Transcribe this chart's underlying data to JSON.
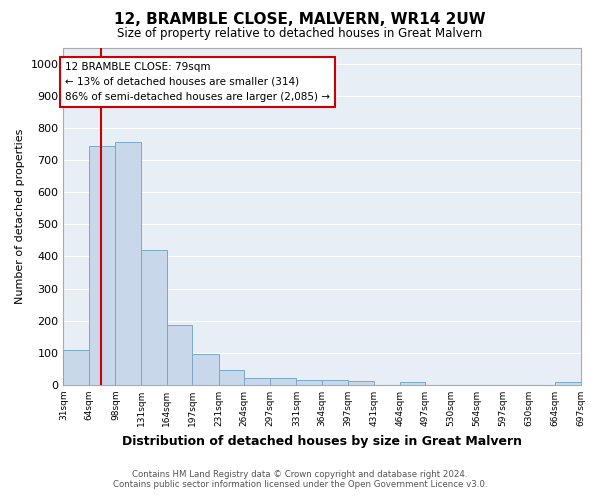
{
  "title": "12, BRAMBLE CLOSE, MALVERN, WR14 2UW",
  "subtitle": "Size of property relative to detached houses in Great Malvern",
  "xlabel": "Distribution of detached houses by size in Great Malvern",
  "ylabel": "Number of detached properties",
  "footer_line1": "Contains HM Land Registry data © Crown copyright and database right 2024.",
  "footer_line2": "Contains public sector information licensed under the Open Government Licence v3.0.",
  "annotation_line1": "12 BRAMBLE CLOSE: 79sqm",
  "annotation_line2": "← 13% of detached houses are smaller (314)",
  "annotation_line3": "86% of semi-detached houses are larger (2,085) →",
  "property_size_sqm": 79,
  "bar_color": "#c8d8ea",
  "bar_edge_color": "#7aaac8",
  "red_line_color": "#cc0000",
  "background_color": "#ffffff",
  "plot_bg_color": "#e8eef5",
  "annotation_box_color": "#ffffff",
  "annotation_box_edge": "#cc0000",
  "grid_color": "#ffffff",
  "ylim": [
    0,
    1050
  ],
  "yticks": [
    0,
    100,
    200,
    300,
    400,
    500,
    600,
    700,
    800,
    900,
    1000
  ],
  "bin_edges": [
    31,
    64,
    98,
    131,
    164,
    197,
    231,
    264,
    297,
    331,
    364,
    397,
    431,
    464,
    497,
    530,
    564,
    597,
    630,
    664,
    697
  ],
  "bin_labels": [
    "31sqm",
    "64sqm",
    "98sqm",
    "131sqm",
    "164sqm",
    "197sqm",
    "231sqm",
    "264sqm",
    "297sqm",
    "331sqm",
    "364sqm",
    "397sqm",
    "431sqm",
    "464sqm",
    "497sqm",
    "530sqm",
    "564sqm",
    "597sqm",
    "630sqm",
    "664sqm",
    "697sqm"
  ],
  "bar_heights": [
    110,
    745,
    755,
    420,
    185,
    95,
    45,
    22,
    22,
    15,
    15,
    12,
    0,
    8,
    0,
    0,
    0,
    0,
    0,
    8
  ]
}
